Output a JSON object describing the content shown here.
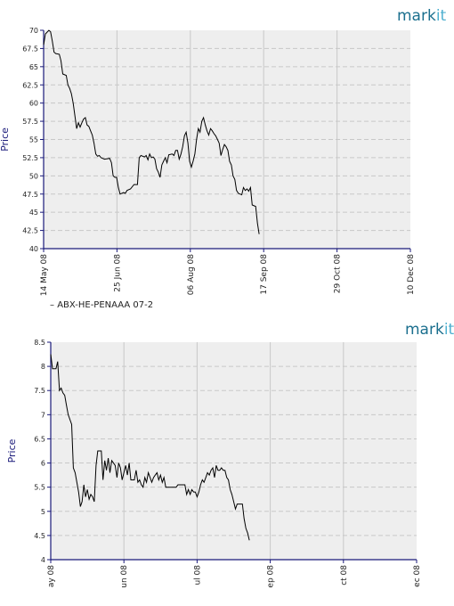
{
  "brand": {
    "logo_main": "mark",
    "logo_accent": "it",
    "color_main": "#1b6f8e",
    "color_accent": "#4fb0d0"
  },
  "colors": {
    "plot_bg": "#eeeeee",
    "grid": "#c8c8c8",
    "axis": "#1a1a7a",
    "line": "#000000"
  },
  "chart_data": [
    {
      "type": "line",
      "ylabel": "Price",
      "xlabel": "",
      "ylim": [
        40,
        70
      ],
      "y_ticks": [
        "40",
        "42.5",
        "45",
        "47.5",
        "50",
        "52.5",
        "55",
        "57.5",
        "60",
        "62.5",
        "65",
        "67.5",
        "70"
      ],
      "x_ticks": [
        "14 May 08",
        "25 Jun 08",
        "06 Aug 08",
        "17 Sep 08",
        "29 Oct 08",
        "10 Dec 08"
      ],
      "grid": true,
      "legend": {
        "placement": "bottom-left",
        "entries": [
          "ABX-HE-PENAAA 07-2"
        ]
      },
      "series": [
        {
          "name": "ABX-HE-PENAAA 07-2",
          "points": [
            [
              0,
              68.0
            ],
            [
              1,
              69.5
            ],
            [
              3,
              70.0
            ],
            [
              4,
              69.8
            ],
            [
              5,
              68.5
            ],
            [
              6,
              67.0
            ],
            [
              7,
              66.8
            ],
            [
              9,
              66.7
            ],
            [
              10,
              65.8
            ],
            [
              11,
              64.0
            ],
            [
              13,
              63.8
            ],
            [
              14,
              62.5
            ],
            [
              15,
              62.0
            ],
            [
              16,
              61.3
            ],
            [
              17,
              60.0
            ],
            [
              18,
              58.3
            ],
            [
              19,
              56.5
            ],
            [
              20,
              57.3
            ],
            [
              21,
              56.7
            ],
            [
              22,
              57.3
            ],
            [
              23,
              57.8
            ],
            [
              24,
              58.0
            ],
            [
              25,
              57.0
            ],
            [
              26,
              56.8
            ],
            [
              27,
              56.2
            ],
            [
              28,
              55.6
            ],
            [
              29,
              54.5
            ],
            [
              30,
              53.0
            ],
            [
              31,
              52.7
            ],
            [
              32,
              52.8
            ],
            [
              33,
              52.5
            ],
            [
              35,
              52.3
            ],
            [
              38,
              52.4
            ],
            [
              39,
              51.8
            ],
            [
              40,
              50.0
            ],
            [
              41,
              49.8
            ],
            [
              42,
              49.8
            ],
            [
              43,
              48.4
            ],
            [
              44,
              47.5
            ],
            [
              46,
              47.7
            ],
            [
              47,
              47.6
            ],
            [
              48,
              48.0
            ],
            [
              50,
              48.2
            ],
            [
              52,
              48.8
            ],
            [
              54,
              48.8
            ],
            [
              55,
              52.5
            ],
            [
              56,
              52.8
            ],
            [
              58,
              52.6
            ],
            [
              59,
              52.8
            ],
            [
              60,
              52.2
            ],
            [
              61,
              53.0
            ],
            [
              62,
              52.5
            ],
            [
              63,
              52.6
            ],
            [
              64,
              52.3
            ],
            [
              65,
              51.0
            ],
            [
              66,
              50.5
            ],
            [
              67,
              49.8
            ],
            [
              68,
              51.5
            ],
            [
              69,
              52.0
            ],
            [
              70,
              52.5
            ],
            [
              71,
              51.8
            ],
            [
              72,
              52.9
            ],
            [
              74,
              53.0
            ],
            [
              75,
              52.8
            ],
            [
              76,
              53.5
            ],
            [
              77,
              53.5
            ],
            [
              78,
              52.3
            ],
            [
              79,
              53.0
            ],
            [
              80,
              54.0
            ],
            [
              81,
              55.5
            ],
            [
              82,
              56.0
            ],
            [
              83,
              54.5
            ],
            [
              84,
              52.0
            ],
            [
              85,
              51.2
            ],
            [
              86,
              52.0
            ],
            [
              87,
              53.0
            ],
            [
              88,
              55.0
            ],
            [
              89,
              56.5
            ],
            [
              90,
              56.0
            ],
            [
              91,
              57.5
            ],
            [
              92,
              58.0
            ],
            [
              93,
              57.0
            ],
            [
              94,
              56.2
            ],
            [
              95,
              55.6
            ],
            [
              96,
              56.5
            ],
            [
              97,
              56.2
            ],
            [
              98,
              55.8
            ],
            [
              99,
              55.5
            ],
            [
              100,
              55.0
            ],
            [
              101,
              54.5
            ],
            [
              102,
              52.8
            ],
            [
              103,
              53.6
            ],
            [
              104,
              54.3
            ],
            [
              105,
              54.0
            ],
            [
              106,
              53.5
            ],
            [
              107,
              52.0
            ],
            [
              108,
              51.5
            ],
            [
              109,
              50.0
            ],
            [
              110,
              49.5
            ],
            [
              111,
              48.0
            ],
            [
              112,
              47.6
            ],
            [
              114,
              47.4
            ],
            [
              115,
              48.4
            ],
            [
              116,
              48.0
            ],
            [
              117,
              48.2
            ],
            [
              118,
              47.9
            ],
            [
              119,
              48.4
            ],
            [
              120,
              46.0
            ],
            [
              122,
              45.8
            ],
            [
              123,
              43.5
            ],
            [
              124,
              42.0
            ]
          ]
        }
      ]
    },
    {
      "type": "line",
      "ylabel": "Price",
      "xlabel": "",
      "ylim": [
        4,
        8.5
      ],
      "y_ticks": [
        "4",
        "4.5",
        "5",
        "5.5",
        "6",
        "6.5",
        "7",
        "7.5",
        "8",
        "8.5"
      ],
      "x_ticks": [
        "ay 08",
        "un 08",
        "ul 08",
        "ep 08",
        "ct 08",
        "ec 08"
      ],
      "grid": true,
      "series": [
        {
          "points": [
            [
              0,
              8.25
            ],
            [
              1,
              7.95
            ],
            [
              3,
              7.95
            ],
            [
              4,
              8.1
            ],
            [
              5,
              7.5
            ],
            [
              6,
              7.55
            ],
            [
              7,
              7.45
            ],
            [
              8,
              7.4
            ],
            [
              9,
              7.2
            ],
            [
              10,
              7.0
            ],
            [
              12,
              6.8
            ],
            [
              13,
              5.9
            ],
            [
              14,
              5.8
            ],
            [
              16,
              5.4
            ],
            [
              17,
              5.1
            ],
            [
              18,
              5.2
            ],
            [
              19,
              5.55
            ],
            [
              20,
              5.3
            ],
            [
              21,
              5.45
            ],
            [
              22,
              5.25
            ],
            [
              23,
              5.35
            ],
            [
              24,
              5.3
            ],
            [
              25,
              5.2
            ],
            [
              26,
              5.95
            ],
            [
              27,
              6.25
            ],
            [
              29,
              6.25
            ],
            [
              30,
              5.65
            ],
            [
              31,
              6.05
            ],
            [
              32,
              5.85
            ],
            [
              33,
              6.1
            ],
            [
              34,
              5.8
            ],
            [
              35,
              6.05
            ],
            [
              36,
              6.0
            ],
            [
              37,
              5.95
            ],
            [
              38,
              5.7
            ],
            [
              39,
              6.0
            ],
            [
              40,
              5.9
            ],
            [
              41,
              5.65
            ],
            [
              42,
              5.8
            ],
            [
              43,
              5.95
            ],
            [
              44,
              5.75
            ],
            [
              45,
              6.0
            ],
            [
              46,
              5.65
            ],
            [
              48,
              5.65
            ],
            [
              49,
              5.85
            ],
            [
              50,
              5.6
            ],
            [
              51,
              5.65
            ],
            [
              52,
              5.55
            ],
            [
              53,
              5.5
            ],
            [
              54,
              5.7
            ],
            [
              55,
              5.6
            ],
            [
              56,
              5.8
            ],
            [
              57,
              5.7
            ],
            [
              58,
              5.6
            ],
            [
              59,
              5.7
            ],
            [
              60,
              5.75
            ],
            [
              61,
              5.8
            ],
            [
              62,
              5.65
            ],
            [
              63,
              5.75
            ],
            [
              64,
              5.6
            ],
            [
              65,
              5.7
            ],
            [
              66,
              5.5
            ],
            [
              72,
              5.5
            ],
            [
              73,
              5.55
            ],
            [
              77,
              5.55
            ],
            [
              78,
              5.35
            ],
            [
              79,
              5.45
            ],
            [
              80,
              5.35
            ],
            [
              81,
              5.45
            ],
            [
              82,
              5.4
            ],
            [
              83,
              5.4
            ],
            [
              84,
              5.3
            ],
            [
              85,
              5.4
            ],
            [
              86,
              5.55
            ],
            [
              87,
              5.65
            ],
            [
              88,
              5.6
            ],
            [
              89,
              5.7
            ],
            [
              90,
              5.8
            ],
            [
              91,
              5.75
            ],
            [
              92,
              5.85
            ],
            [
              93,
              5.9
            ],
            [
              94,
              5.7
            ],
            [
              95,
              5.95
            ],
            [
              96,
              5.85
            ],
            [
              97,
              5.85
            ],
            [
              98,
              5.9
            ],
            [
              99,
              5.85
            ],
            [
              100,
              5.85
            ],
            [
              101,
              5.7
            ],
            [
              102,
              5.65
            ],
            [
              103,
              5.45
            ],
            [
              104,
              5.35
            ],
            [
              106,
              5.05
            ],
            [
              107,
              5.15
            ],
            [
              110,
              5.15
            ],
            [
              111,
              4.85
            ],
            [
              112,
              4.65
            ],
            [
              113,
              4.55
            ],
            [
              114,
              4.4
            ]
          ]
        }
      ]
    }
  ]
}
